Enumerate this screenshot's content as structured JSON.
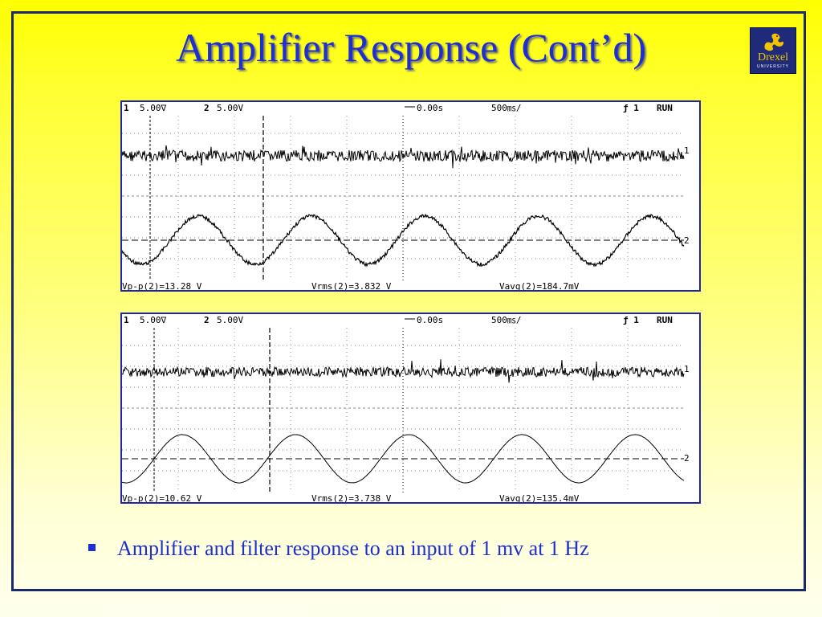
{
  "slide": {
    "title": "Amplifier Response (Cont’d)",
    "bullet": "Amplifier and filter response to an input of 1 mv at 1 Hz"
  },
  "logo": {
    "icon": "dragon-icon",
    "name": "Drexel",
    "subtitle": "UNIVERSITY",
    "colors": {
      "background": "#1f2a78",
      "text": "#f2c400"
    }
  },
  "colors": {
    "title": "#1d2fd0",
    "frame": "#1c2a6b",
    "scope_border": "#1f24b0",
    "bullet": "#1d2fd0"
  },
  "scopes": [
    {
      "header": {
        "ch1_num": "1",
        "ch1_scale": "5.00∇",
        "ch2_num": "2",
        "ch2_scale": "5.00V",
        "time_offset": "0.00s",
        "time_div": "500㎳/",
        "trigger": "ƒ 1",
        "status": "RUN"
      },
      "footer": {
        "vpp": "Vp-p(2)=13.28  V",
        "vrms": "Vrms(2)=3.832  V",
        "vavg": "Vavg(2)=184.7mV"
      },
      "channel_markers": [
        "1",
        "2"
      ]
    },
    {
      "header": {
        "ch1_num": "1",
        "ch1_scale": "5.00∇",
        "ch2_num": "2",
        "ch2_scale": "5.00V",
        "time_offset": "0.00s",
        "time_div": "500㎳/",
        "trigger": "ƒ 1",
        "status": "RUN"
      },
      "footer": {
        "vpp": "Vp-p(2)=10.62  V",
        "vrms": "Vrms(2)=3.738  V",
        "vavg": "Vavg(2)=135.4mV"
      },
      "channel_markers": [
        "1",
        "2"
      ]
    }
  ]
}
